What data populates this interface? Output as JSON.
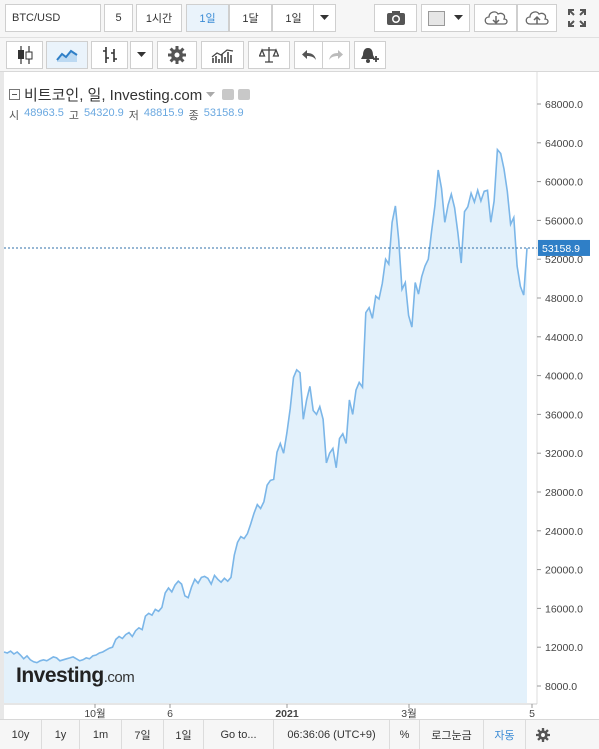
{
  "toolbar": {
    "symbol": "BTC/USD",
    "interval_value": "5",
    "interval_hour": "1시간",
    "interval_day": "1일",
    "interval_month": "1달",
    "range": "1일"
  },
  "chart_header": {
    "title": "비트코인, 일, Investing.com",
    "open_label": "시",
    "open_value": "48963.5",
    "high_label": "고",
    "high_value": "54320.9",
    "low_label": "저",
    "low_value": "48815.9",
    "close_label": "종",
    "close_value": "53158.9"
  },
  "price_tag": "53158.9",
  "logo": {
    "brand": "Investing",
    "domain": ".com"
  },
  "bottom": {
    "r10y": "10y",
    "r1y": "1y",
    "r1m": "1m",
    "r7d": "7일",
    "r1d": "1일",
    "goto": "Go to...",
    "clock": "06:36:06 (UTC+9)",
    "pct": "%",
    "log": "로그눈금",
    "auto": "자동"
  },
  "colors": {
    "line": "#7bb6e8",
    "fill": "#e3f1fb",
    "accent": "#3a8bd5",
    "price_tag": "#2f7fc7"
  },
  "chart_data": {
    "type": "area",
    "title": "비트코인, 일, Investing.com",
    "x_tick_labels": [
      "10월",
      "6",
      "2021",
      "3월",
      "5"
    ],
    "y_ticks": [
      8000,
      12000,
      16000,
      20000,
      24000,
      28000,
      32000,
      36000,
      40000,
      44000,
      48000,
      52000,
      56000,
      60000,
      64000,
      68000
    ],
    "ylim": [
      6500,
      70500
    ],
    "last_price": 53158.9,
    "series": [
      {
        "values": [
          11500,
          11400,
          11600,
          11300,
          11500,
          11200,
          10800,
          11100,
          10700,
          10500,
          10400,
          10600,
          10700,
          10600,
          10800,
          11000,
          10900,
          10600,
          10700,
          10800,
          10900,
          11000,
          10800,
          10600,
          10700,
          10900,
          10800,
          11100,
          11200,
          11400,
          11500,
          11700,
          11900,
          12000,
          12800,
          13100,
          12900,
          13300,
          13500,
          13100,
          13700,
          14000,
          13800,
          15200,
          15500,
          15300,
          15900,
          15700,
          16100,
          17600,
          18100,
          17700,
          18400,
          18800,
          18500,
          17300,
          17100,
          18200,
          19000,
          18600,
          19200,
          19300,
          19100,
          18500,
          19400,
          19000,
          18700,
          19100,
          18800,
          19200,
          21500,
          22800,
          23400,
          23200,
          23700,
          24700,
          25800,
          26700,
          26300,
          27000,
          28700,
          29200,
          29300,
          32100,
          33000,
          32000,
          34100,
          36600,
          39800,
          40600,
          40300,
          35500,
          37500,
          38900,
          36400,
          36000,
          36800,
          35500,
          31000,
          32000,
          32500,
          30500,
          33500,
          34000,
          33000,
          37500,
          36000,
          38500,
          39300,
          38800,
          46500,
          47000,
          45900,
          48200,
          47900,
          49500,
          52000,
          51500,
          55800,
          57500,
          54000,
          48900,
          49600,
          46200,
          45000,
          49600,
          48400,
          50200,
          51300,
          52000,
          54900,
          57500,
          61200,
          59300,
          55800,
          57600,
          58700,
          57300,
          54700,
          51600,
          56900,
          57400,
          58800,
          57900,
          59100,
          58000,
          59000,
          59100,
          55800,
          58000,
          63300,
          62900,
          61300,
          59000,
          55600,
          56300,
          51300,
          49200,
          48300,
          53159
        ]
      }
    ]
  }
}
